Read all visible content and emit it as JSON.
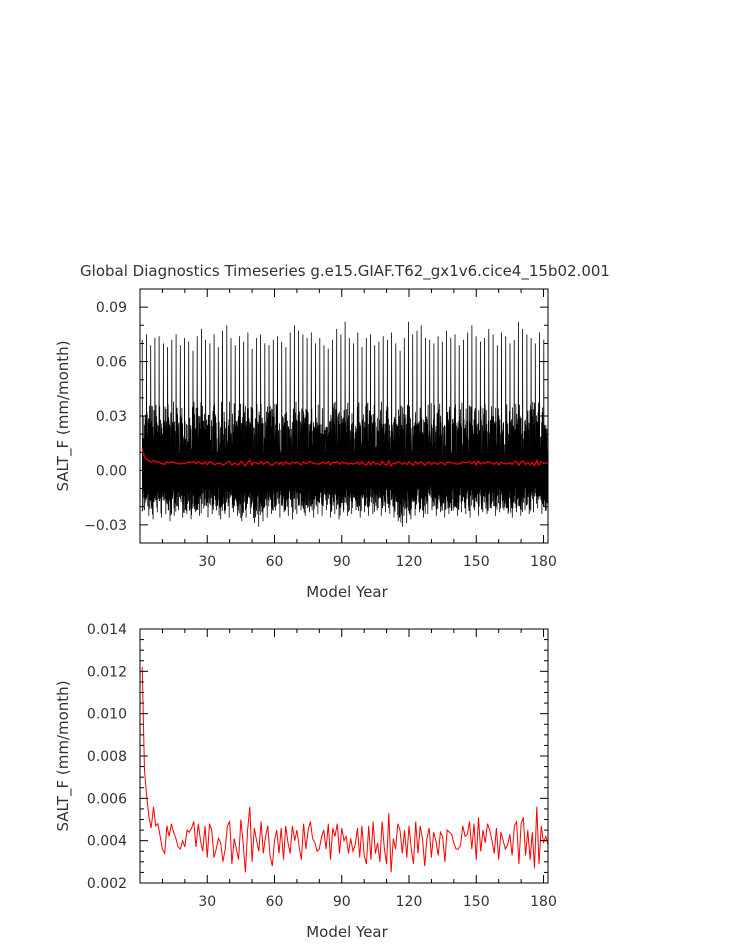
{
  "title": "Global Diagnostics Timeseries g.e15.GIAF.T62_gx1v6.cice4_15b02.001",
  "chart_data": [
    {
      "type": "line",
      "xlabel": "Model Year",
      "ylabel": "SALT_F (mm/month)",
      "xlim": [
        0,
        182
      ],
      "ylim": [
        -0.04,
        0.1
      ],
      "xticks": [
        30,
        60,
        90,
        120,
        150,
        180
      ],
      "xtick_labels": [
        "30",
        "60",
        "90",
        "120",
        "150",
        "180"
      ],
      "yticks": [
        -0.03,
        0.0,
        0.03,
        0.06,
        0.09
      ],
      "ytick_labels": [
        "−0.03",
        "0.00",
        "0.03",
        "0.06",
        "0.09"
      ],
      "series": [
        {
          "color": "#000000",
          "style": "monthly oscillation",
          "upper_envelope": [
            0.072,
            0.075,
            0.069,
            0.073,
            0.074,
            0.07,
            0.068,
            0.072,
            0.075,
            0.069,
            0.073,
            0.071,
            0.066,
            0.074,
            0.078,
            0.072,
            0.07,
            0.075,
            0.068,
            0.077,
            0.08,
            0.073,
            0.069,
            0.074,
            0.071,
            0.076,
            0.067,
            0.073,
            0.075,
            0.07,
            0.069,
            0.072,
            0.074,
            0.071,
            0.068,
            0.076,
            0.08,
            0.077,
            0.075,
            0.073,
            0.076,
            0.07,
            0.073,
            0.069,
            0.067,
            0.072,
            0.078,
            0.075,
            0.082,
            0.073,
            0.07,
            0.076,
            0.068,
            0.073,
            0.075,
            0.069,
            0.071,
            0.074,
            0.072,
            0.076,
            0.07,
            0.066,
            0.073,
            0.082,
            0.075,
            0.077,
            0.08,
            0.073,
            0.072,
            0.07,
            0.074,
            0.071,
            0.077,
            0.073,
            0.075,
            0.069,
            0.072,
            0.076,
            0.08,
            0.074,
            0.071,
            0.073,
            0.078,
            0.075,
            0.069,
            0.076,
            0.074,
            0.07,
            0.072,
            0.082,
            0.078,
            0.075,
            0.073,
            0.07,
            0.076,
            0.072
          ],
          "lower_envelope": [
            -0.022,
            -0.025,
            -0.027,
            -0.023,
            -0.026,
            -0.024,
            -0.028,
            -0.025,
            -0.022,
            -0.026,
            -0.024,
            -0.027,
            -0.023,
            -0.025,
            -0.021,
            -0.026,
            -0.024,
            -0.022,
            -0.027,
            -0.024,
            -0.026,
            -0.023,
            -0.025,
            -0.028,
            -0.026,
            -0.024,
            -0.029,
            -0.031,
            -0.028,
            -0.026,
            -0.024,
            -0.022,
            -0.026,
            -0.023,
            -0.025,
            -0.027,
            -0.024,
            -0.022,
            -0.025,
            -0.023,
            -0.026,
            -0.024,
            -0.025,
            -0.022,
            -0.026,
            -0.024,
            -0.027,
            -0.023,
            -0.025,
            -0.024,
            -0.022,
            -0.026,
            -0.023,
            -0.025,
            -0.024,
            -0.022,
            -0.025,
            -0.023,
            -0.024,
            -0.026,
            -0.028,
            -0.031,
            -0.029,
            -0.027,
            -0.025,
            -0.023,
            -0.026,
            -0.024,
            -0.022,
            -0.025,
            -0.023,
            -0.026,
            -0.024,
            -0.022,
            -0.025,
            -0.023,
            -0.024,
            -0.026,
            -0.022,
            -0.025,
            -0.023,
            -0.024,
            -0.021,
            -0.025,
            -0.023,
            -0.022,
            -0.024,
            -0.026,
            -0.023,
            -0.025,
            -0.022,
            -0.024,
            -0.023,
            -0.021,
            -0.024,
            -0.022
          ]
        },
        {
          "color": "#ff0000",
          "style": "annual mean",
          "values_ref": "chart_data.1.series.0"
        }
      ]
    },
    {
      "type": "line",
      "xlabel": "Model Year",
      "ylabel": "SALT_F (mm/month)",
      "xlim": [
        0,
        182
      ],
      "ylim": [
        0.002,
        0.014
      ],
      "xticks": [
        30,
        60,
        90,
        120,
        150,
        180
      ],
      "xtick_labels": [
        "30",
        "60",
        "90",
        "120",
        "150",
        "180"
      ],
      "yticks": [
        0.002,
        0.004,
        0.006,
        0.008,
        0.01,
        0.012,
        0.014
      ],
      "ytick_labels": [
        "0.002",
        "0.004",
        "0.006",
        "0.008",
        "0.010",
        "0.012",
        "0.014"
      ],
      "series": [
        {
          "color": "#ff0000",
          "x_start": 1,
          "values": [
            0.0122,
            0.0073,
            0.0061,
            0.0051,
            0.0046,
            0.0056,
            0.0047,
            0.0048,
            0.0042,
            0.0036,
            0.0034,
            0.0047,
            0.0042,
            0.0048,
            0.0044,
            0.0041,
            0.0037,
            0.0036,
            0.004,
            0.0037,
            0.0045,
            0.0044,
            0.0046,
            0.0049,
            0.0037,
            0.0048,
            0.004,
            0.0035,
            0.0047,
            0.0032,
            0.0048,
            0.0045,
            0.0032,
            0.0036,
            0.0041,
            0.0039,
            0.003,
            0.0036,
            0.0047,
            0.0049,
            0.0029,
            0.0041,
            0.0036,
            0.0031,
            0.005,
            0.0039,
            0.0025,
            0.0045,
            0.0056,
            0.003,
            0.0046,
            0.004,
            0.0035,
            0.0049,
            0.0034,
            0.0042,
            0.0047,
            0.0033,
            0.0028,
            0.004,
            0.0045,
            0.0034,
            0.0046,
            0.0031,
            0.0047,
            0.0039,
            0.0034,
            0.0047,
            0.004,
            0.0045,
            0.0037,
            0.0031,
            0.0048,
            0.0036,
            0.0045,
            0.0049,
            0.0041,
            0.0039,
            0.0035,
            0.0036,
            0.0042,
            0.0045,
            0.0036,
            0.0048,
            0.0031,
            0.0046,
            0.0042,
            0.0048,
            0.0034,
            0.0046,
            0.004,
            0.0042,
            0.0034,
            0.0041,
            0.0035,
            0.0038,
            0.0046,
            0.0032,
            0.0047,
            0.0033,
            0.0029,
            0.0047,
            0.0031,
            0.0049,
            0.0034,
            0.0039,
            0.003,
            0.0049,
            0.0036,
            0.0029,
            0.0053,
            0.0025,
            0.0041,
            0.0036,
            0.0048,
            0.0045,
            0.0034,
            0.0045,
            0.0032,
            0.0047,
            0.0036,
            0.0029,
            0.0049,
            0.0034,
            0.0047,
            0.0041,
            0.0028,
            0.0041,
            0.0046,
            0.0032,
            0.0044,
            0.004,
            0.0033,
            0.0044,
            0.0042,
            0.003,
            0.0045,
            0.0044,
            0.0043,
            0.0039,
            0.0036,
            0.0036,
            0.0038,
            0.0047,
            0.0042,
            0.0043,
            0.0049,
            0.0036,
            0.0048,
            0.0031,
            0.0051,
            0.0035,
            0.0045,
            0.0039,
            0.0048,
            0.0045,
            0.004,
            0.0034,
            0.0046,
            0.0031,
            0.0044,
            0.004,
            0.0036,
            0.0038,
            0.0043,
            0.0033,
            0.0047,
            0.0049,
            0.0029,
            0.0048,
            0.0051,
            0.0033,
            0.0045,
            0.0031,
            0.0044,
            0.0027,
            0.0056,
            0.0029,
            0.0047,
            0.0039,
            0.0042,
            0.0038
          ]
        }
      ]
    }
  ]
}
